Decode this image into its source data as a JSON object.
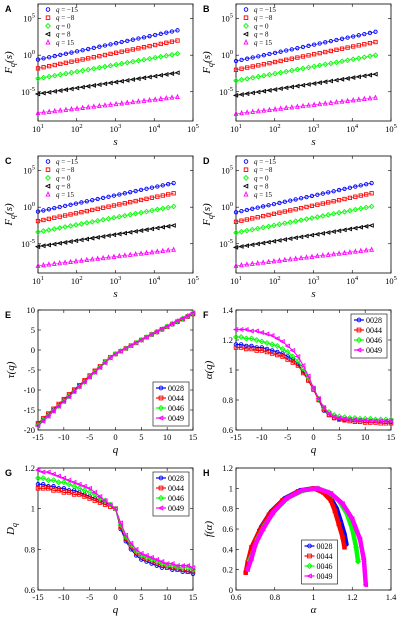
{
  "colors": {
    "blue": "#0000ff",
    "red": "#ff0000",
    "green": "#00ff00",
    "black": "#000000",
    "magenta": "#ff00ff"
  },
  "chart_data": [
    {
      "panel": "A",
      "type": "scatter",
      "xlabel": "s",
      "ylabel": "F_q(s)",
      "xscale": "log",
      "yscale": "log",
      "xlim": [
        10,
        100000
      ],
      "ylim": [
        1e-09,
        10000000.0
      ],
      "xticks": [
        "10^1",
        "10^2",
        "10^3",
        "10^4",
        "10^5"
      ],
      "yticks": [
        "10^5",
        "10^0",
        "10^-5"
      ],
      "legend_position": "top-left",
      "series": [
        {
          "name": "q = -15",
          "color": "blue",
          "marker": "circle",
          "start_log10_y": -0.6,
          "end_log10_y": 3.4
        },
        {
          "name": "q = -8",
          "color": "red",
          "marker": "square",
          "start_log10_y": -1.8,
          "end_log10_y": 2.0
        },
        {
          "name": "q = 0",
          "color": "green",
          "marker": "diamond",
          "start_log10_y": -3.2,
          "end_log10_y": 0.2
        },
        {
          "name": "q = 8",
          "color": "black",
          "marker": "triangle-left",
          "start_log10_y": -5.3,
          "end_log10_y": -2.4
        },
        {
          "name": "q = 15",
          "color": "magenta",
          "marker": "triangle-up",
          "start_log10_y": -7.9,
          "end_log10_y": -5.7
        }
      ],
      "x_range_log10": [
        1.0,
        4.6
      ]
    },
    {
      "panel": "B",
      "type": "scatter",
      "xlabel": "s",
      "ylabel": "F_q(s)",
      "xscale": "log",
      "yscale": "log",
      "xlim": [
        10,
        100000
      ],
      "ylim": [
        1e-09,
        10000000.0
      ],
      "xticks": [
        "10^1",
        "10^2",
        "10^3",
        "10^4",
        "10^5"
      ],
      "yticks": [
        "10^5",
        "10^0",
        "10^-5"
      ],
      "legend_position": "top-left",
      "series": [
        {
          "name": "q = -15",
          "color": "blue",
          "marker": "circle",
          "start_log10_y": -0.8,
          "end_log10_y": 3.2
        },
        {
          "name": "q = -8",
          "color": "red",
          "marker": "square",
          "start_log10_y": -2.0,
          "end_log10_y": 1.8
        },
        {
          "name": "q = 0",
          "color": "green",
          "marker": "diamond",
          "start_log10_y": -3.5,
          "end_log10_y": 0.0
        },
        {
          "name": "q = 8",
          "color": "black",
          "marker": "triangle-left",
          "start_log10_y": -5.5,
          "end_log10_y": -2.6
        },
        {
          "name": "q = 15",
          "color": "magenta",
          "marker": "triangle-up",
          "start_log10_y": -8.0,
          "end_log10_y": -5.8
        }
      ],
      "x_range_log10": [
        1.0,
        4.6
      ]
    },
    {
      "panel": "C",
      "type": "scatter",
      "xlabel": "s",
      "ylabel": "F_q(s)",
      "xscale": "log",
      "yscale": "log",
      "xlim": [
        10,
        100000
      ],
      "ylim": [
        1e-09,
        10000000.0
      ],
      "xticks": [
        "10^1",
        "10^2",
        "10^3",
        "10^4",
        "10^5"
      ],
      "yticks": [
        "10^5",
        "10^0",
        "10^-5"
      ],
      "legend_position": "top-left",
      "series": [
        {
          "name": "q = -15",
          "color": "blue",
          "marker": "circle",
          "start_log10_y": -0.6,
          "end_log10_y": 3.3
        },
        {
          "name": "q = -8",
          "color": "red",
          "marker": "square",
          "start_log10_y": -1.9,
          "end_log10_y": 1.9
        },
        {
          "name": "q = 0",
          "color": "green",
          "marker": "diamond",
          "start_log10_y": -3.4,
          "end_log10_y": 0.1
        },
        {
          "name": "q = 8",
          "color": "black",
          "marker": "triangle-left",
          "start_log10_y": -5.4,
          "end_log10_y": -2.5
        },
        {
          "name": "q = 15",
          "color": "magenta",
          "marker": "triangle-up",
          "start_log10_y": -8.0,
          "end_log10_y": -5.8
        }
      ],
      "x_range_log10": [
        1.0,
        4.5
      ]
    },
    {
      "panel": "D",
      "type": "scatter",
      "xlabel": "s",
      "ylabel": "F_q(s)",
      "xscale": "log",
      "yscale": "log",
      "xlim": [
        10,
        100000
      ],
      "ylim": [
        1e-09,
        10000000.0
      ],
      "xticks": [
        "10^1",
        "10^2",
        "10^3",
        "10^4",
        "10^5"
      ],
      "yticks": [
        "10^5",
        "10^0",
        "10^-5"
      ],
      "legend_position": "top-left",
      "series": [
        {
          "name": "q = -15",
          "color": "blue",
          "marker": "circle",
          "start_log10_y": -0.7,
          "end_log10_y": 3.3
        },
        {
          "name": "q = -8",
          "color": "red",
          "marker": "square",
          "start_log10_y": -2.0,
          "end_log10_y": 1.9
        },
        {
          "name": "q = 0",
          "color": "green",
          "marker": "diamond",
          "start_log10_y": -3.5,
          "end_log10_y": 0.1
        },
        {
          "name": "q = 8",
          "color": "black",
          "marker": "triangle-left",
          "start_log10_y": -5.5,
          "end_log10_y": -2.5
        },
        {
          "name": "q = 15",
          "color": "magenta",
          "marker": "triangle-up",
          "start_log10_y": -8.0,
          "end_log10_y": -5.8
        }
      ],
      "x_range_log10": [
        1.0,
        4.5
      ]
    },
    {
      "panel": "E",
      "type": "line",
      "xlabel": "q",
      "ylabel": "τ(q)",
      "xlim": [
        -15,
        15
      ],
      "ylim": [
        -20,
        10
      ],
      "xticks": [
        -15,
        -10,
        -5,
        0,
        5,
        10,
        15
      ],
      "yticks": [
        10,
        5,
        0,
        -5,
        -10,
        -15,
        -20
      ],
      "legend_position": "bottom-right",
      "x": [
        -15,
        -14,
        -13,
        -12,
        -11,
        -10,
        -9,
        -8,
        -7,
        -6,
        -5,
        -4,
        -3,
        -2,
        -1,
        0,
        1,
        2,
        3,
        4,
        5,
        6,
        7,
        8,
        9,
        10,
        11,
        12,
        13,
        14,
        15
      ],
      "series": [
        {
          "name": "0028",
          "color": "blue",
          "marker": "circle",
          "values": [
            -18.6,
            -17.4,
            -16.2,
            -15.0,
            -13.8,
            -12.6,
            -11.4,
            -10.2,
            -9.0,
            -7.8,
            -6.6,
            -5.4,
            -4.2,
            -3.0,
            -1.9,
            -1.0,
            -0.3,
            0.4,
            1.1,
            1.8,
            2.5,
            3.2,
            3.8,
            4.5,
            5.1,
            5.8,
            6.4,
            7.0,
            7.7,
            8.3,
            9.0
          ]
        },
        {
          "name": "0044",
          "color": "red",
          "marker": "square",
          "values": [
            -18.3,
            -17.1,
            -15.9,
            -14.7,
            -13.5,
            -12.3,
            -11.1,
            -9.9,
            -8.8,
            -7.6,
            -6.4,
            -5.2,
            -4.1,
            -2.9,
            -1.8,
            -1.0,
            -0.3,
            0.4,
            1.1,
            1.8,
            2.5,
            3.2,
            3.9,
            4.5,
            5.2,
            5.8,
            6.5,
            7.1,
            7.7,
            8.4,
            9.0
          ]
        },
        {
          "name": "0046",
          "color": "green",
          "marker": "diamond",
          "values": [
            -18.8,
            -17.6,
            -16.4,
            -15.2,
            -14.0,
            -12.8,
            -11.6,
            -10.4,
            -9.2,
            -8.0,
            -6.7,
            -5.5,
            -4.3,
            -3.1,
            -1.9,
            -1.0,
            -0.3,
            0.4,
            1.1,
            1.8,
            2.5,
            3.2,
            3.9,
            4.6,
            5.2,
            5.9,
            6.6,
            7.2,
            7.9,
            8.5,
            9.2
          ]
        },
        {
          "name": "0049",
          "color": "magenta",
          "marker": "triangle-left",
          "values": [
            -19.0,
            -17.8,
            -16.6,
            -15.3,
            -14.1,
            -12.9,
            -11.7,
            -10.4,
            -9.2,
            -8.0,
            -6.8,
            -5.6,
            -4.4,
            -3.2,
            -2.0,
            -1.0,
            -0.3,
            0.4,
            1.1,
            1.8,
            2.5,
            3.2,
            3.9,
            4.6,
            5.3,
            5.9,
            6.6,
            7.3,
            7.9,
            8.6,
            9.3
          ]
        }
      ]
    },
    {
      "panel": "F",
      "type": "line",
      "xlabel": "q",
      "ylabel": "α(q)",
      "xlim": [
        -15,
        15
      ],
      "ylim": [
        0.6,
        1.4
      ],
      "xticks": [
        -15,
        -10,
        -5,
        0,
        5,
        10,
        15
      ],
      "yticks": [
        1.4,
        1.2,
        1,
        0.8,
        0.6
      ],
      "legend_position": "top-right",
      "x": [
        -15,
        -14,
        -13,
        -12,
        -11,
        -10,
        -9,
        -8,
        -7,
        -6,
        -5,
        -4,
        -3,
        -2,
        -1,
        0,
        1,
        2,
        3,
        4,
        5,
        6,
        7,
        8,
        9,
        10,
        11,
        12,
        13,
        14,
        15
      ],
      "series": [
        {
          "name": "0028",
          "color": "blue",
          "marker": "circle",
          "values": [
            1.17,
            1.17,
            1.16,
            1.16,
            1.15,
            1.15,
            1.14,
            1.13,
            1.12,
            1.11,
            1.09,
            1.07,
            1.04,
            0.99,
            0.93,
            0.87,
            0.8,
            0.73,
            0.7,
            0.68,
            0.675,
            0.67,
            0.67,
            0.665,
            0.665,
            0.66,
            0.66,
            0.66,
            0.66,
            0.655,
            0.655
          ]
        },
        {
          "name": "0044",
          "color": "red",
          "marker": "square",
          "values": [
            1.15,
            1.15,
            1.14,
            1.14,
            1.13,
            1.13,
            1.12,
            1.11,
            1.1,
            1.09,
            1.07,
            1.05,
            1.03,
            0.98,
            0.93,
            0.87,
            0.8,
            0.74,
            0.7,
            0.68,
            0.67,
            0.665,
            0.66,
            0.655,
            0.655,
            0.65,
            0.65,
            0.65,
            0.645,
            0.645,
            0.645
          ]
        },
        {
          "name": "0046",
          "color": "green",
          "marker": "diamond",
          "values": [
            1.22,
            1.22,
            1.21,
            1.21,
            1.2,
            1.19,
            1.18,
            1.17,
            1.16,
            1.14,
            1.12,
            1.09,
            1.06,
            1.01,
            0.95,
            0.88,
            0.81,
            0.75,
            0.72,
            0.7,
            0.69,
            0.685,
            0.68,
            0.68,
            0.675,
            0.675,
            0.675,
            0.67,
            0.67,
            0.67,
            0.67
          ]
        },
        {
          "name": "0049",
          "color": "magenta",
          "marker": "triangle-left",
          "values": [
            1.27,
            1.27,
            1.27,
            1.26,
            1.26,
            1.25,
            1.24,
            1.23,
            1.21,
            1.19,
            1.16,
            1.13,
            1.09,
            1.03,
            0.96,
            0.88,
            0.81,
            0.75,
            0.71,
            0.69,
            0.68,
            0.675,
            0.67,
            0.67,
            0.665,
            0.665,
            0.66,
            0.66,
            0.66,
            0.66,
            0.66
          ]
        }
      ]
    },
    {
      "panel": "G",
      "type": "line",
      "xlabel": "q",
      "ylabel": "D_q",
      "xlim": [
        -15,
        15
      ],
      "ylim": [
        0.6,
        1.2
      ],
      "xticks": [
        -15,
        -10,
        -5,
        0,
        5,
        10,
        15
      ],
      "yticks": [
        1.2,
        1,
        0.8,
        0.6
      ],
      "legend_position": "top-right",
      "x": [
        -15,
        -14,
        -13,
        -12,
        -11,
        -10,
        -9,
        -8,
        -7,
        -6,
        -5,
        -4,
        -3,
        -2,
        -1,
        0,
        1,
        2,
        3,
        4,
        5,
        6,
        7,
        8,
        9,
        10,
        11,
        12,
        13,
        14,
        15
      ],
      "series": [
        {
          "name": "0028",
          "color": "blue",
          "marker": "circle",
          "values": [
            1.12,
            1.12,
            1.11,
            1.11,
            1.1,
            1.1,
            1.09,
            1.09,
            1.08,
            1.07,
            1.06,
            1.05,
            1.04,
            1.03,
            1.02,
            1.0,
            0.9,
            0.84,
            0.8,
            0.77,
            0.75,
            0.74,
            0.73,
            0.72,
            0.71,
            0.71,
            0.7,
            0.7,
            0.69,
            0.69,
            0.68
          ]
        },
        {
          "name": "0044",
          "color": "red",
          "marker": "square",
          "values": [
            1.1,
            1.1,
            1.1,
            1.09,
            1.09,
            1.08,
            1.08,
            1.07,
            1.07,
            1.06,
            1.05,
            1.04,
            1.03,
            1.02,
            1.01,
            1.0,
            0.91,
            0.85,
            0.81,
            0.78,
            0.76,
            0.75,
            0.74,
            0.73,
            0.72,
            0.71,
            0.71,
            0.7,
            0.7,
            0.69,
            0.69
          ]
        },
        {
          "name": "0046",
          "color": "green",
          "marker": "diamond",
          "values": [
            1.15,
            1.15,
            1.14,
            1.14,
            1.13,
            1.13,
            1.12,
            1.11,
            1.1,
            1.09,
            1.08,
            1.07,
            1.05,
            1.04,
            1.02,
            1.0,
            0.92,
            0.86,
            0.82,
            0.79,
            0.77,
            0.76,
            0.75,
            0.74,
            0.73,
            0.72,
            0.72,
            0.71,
            0.71,
            0.71,
            0.7
          ]
        },
        {
          "name": "0049",
          "color": "magenta",
          "marker": "triangle-left",
          "values": [
            1.19,
            1.18,
            1.18,
            1.17,
            1.16,
            1.15,
            1.14,
            1.13,
            1.12,
            1.11,
            1.1,
            1.08,
            1.06,
            1.04,
            1.02,
            1.0,
            0.93,
            0.87,
            0.83,
            0.8,
            0.78,
            0.77,
            0.76,
            0.75,
            0.74,
            0.73,
            0.73,
            0.72,
            0.72,
            0.72,
            0.71
          ]
        }
      ]
    },
    {
      "panel": "H",
      "type": "line",
      "xlabel": "α",
      "ylabel": "f(α)",
      "xlim": [
        0.6,
        1.4
      ],
      "ylim": [
        0,
        1.2
      ],
      "xticks": [
        0.6,
        0.8,
        1,
        1.2,
        1.4
      ],
      "yticks": [
        1.2,
        1,
        0.8,
        0.6,
        0.4,
        0.2,
        0
      ],
      "legend_position": "bottom-center",
      "series": [
        {
          "name": "0028",
          "color": "blue",
          "marker": "circle",
          "x": [
            0.67,
            0.68,
            0.7,
            0.73,
            0.78,
            0.85,
            0.93,
            1.0,
            1.05,
            1.09,
            1.12,
            1.14,
            1.16,
            1.17
          ],
          "values": [
            0.27,
            0.35,
            0.48,
            0.62,
            0.77,
            0.9,
            0.98,
            1.0,
            0.97,
            0.9,
            0.8,
            0.68,
            0.55,
            0.45
          ]
        },
        {
          "name": "0044",
          "color": "red",
          "marker": "square",
          "x": [
            0.65,
            0.66,
            0.68,
            0.72,
            0.77,
            0.84,
            0.92,
            1.0,
            1.05,
            1.09,
            1.11,
            1.13,
            1.15,
            1.16
          ],
          "values": [
            0.17,
            0.27,
            0.42,
            0.58,
            0.74,
            0.88,
            0.97,
            1.0,
            0.96,
            0.88,
            0.78,
            0.65,
            0.52,
            0.42
          ]
        },
        {
          "name": "0046",
          "color": "green",
          "marker": "diamond",
          "x": [
            0.67,
            0.69,
            0.71,
            0.75,
            0.8,
            0.87,
            0.95,
            1.02,
            1.08,
            1.13,
            1.17,
            1.2,
            1.22,
            1.23
          ],
          "values": [
            0.29,
            0.38,
            0.5,
            0.64,
            0.78,
            0.91,
            0.98,
            1.0,
            0.96,
            0.88,
            0.76,
            0.6,
            0.42,
            0.28
          ]
        },
        {
          "name": "0049",
          "color": "magenta",
          "marker": "triangle-left",
          "x": [
            0.66,
            0.68,
            0.7,
            0.74,
            0.79,
            0.86,
            0.94,
            1.02,
            1.09,
            1.15,
            1.2,
            1.24,
            1.26,
            1.27
          ],
          "values": [
            0.2,
            0.31,
            0.45,
            0.6,
            0.76,
            0.9,
            0.98,
            1.0,
            0.95,
            0.85,
            0.7,
            0.5,
            0.3,
            0.05
          ]
        }
      ]
    }
  ]
}
